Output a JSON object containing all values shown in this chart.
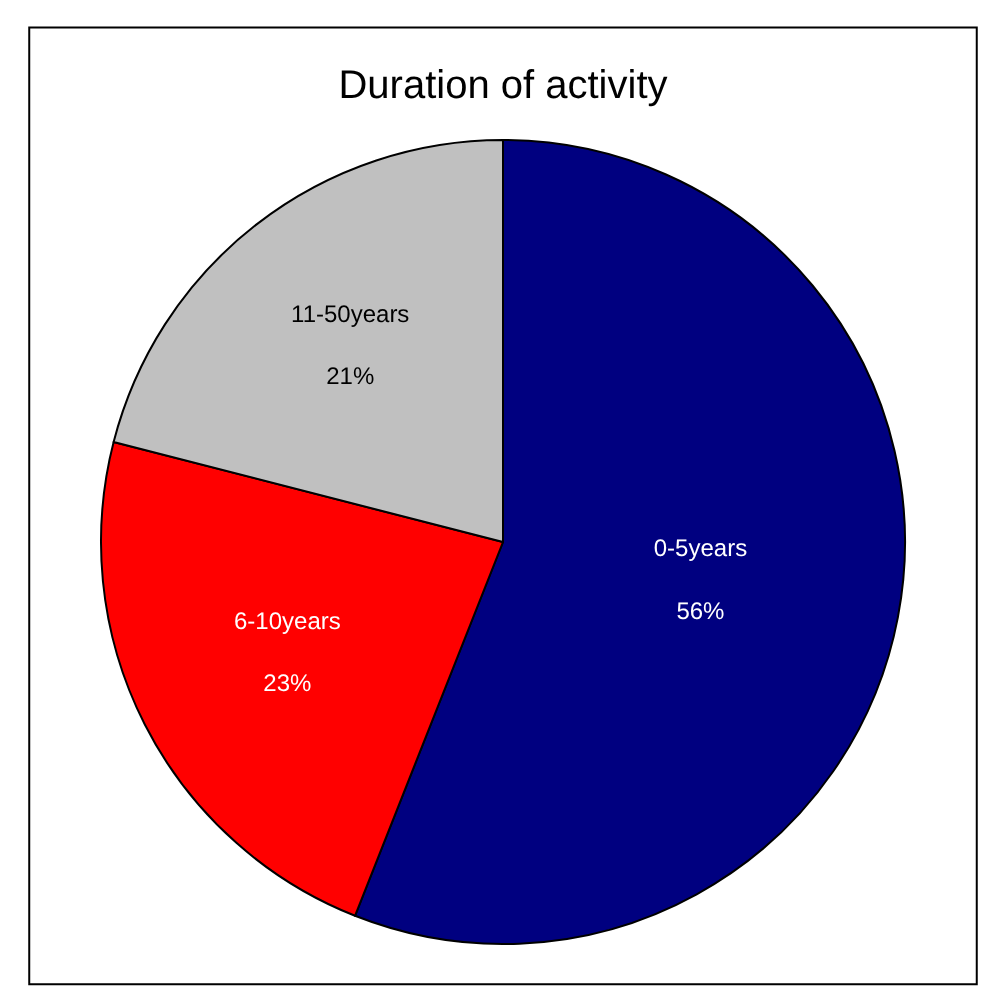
{
  "chart_data": {
    "type": "pie",
    "title": "Duration of activity",
    "categories": [
      "0-5years",
      "6-10years",
      "11-50years"
    ],
    "values": [
      56,
      23,
      21
    ],
    "colors": [
      "#000080",
      "#ff0000",
      "#c0c0c0"
    ],
    "value_labels": [
      "56%",
      "23%",
      "21%"
    ],
    "legend": false
  }
}
